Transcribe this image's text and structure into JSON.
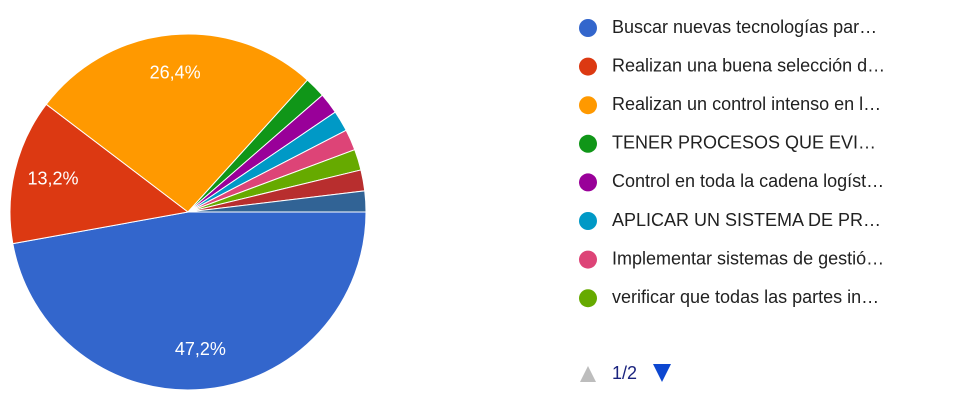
{
  "chart_data": {
    "type": "pie",
    "categories": [
      "Buscar nuevas tecnologías par…",
      "Realizan una buena selección d…",
      "Realizan un control intenso en l…",
      "TENER PROCESOS QUE EVI…",
      "Control en toda la cadena logíst…",
      "APLICAR UN SISTEMA DE PR…",
      "Implementar sistemas de gestió…",
      "verificar que todas las partes in…",
      null,
      null
    ],
    "values": [
      47.2,
      13.2,
      26.4,
      1.9,
      1.9,
      1.9,
      1.9,
      1.9,
      1.9,
      1.9
    ],
    "value_labels": [
      "47,2%",
      "13,2%",
      "26,4%",
      null,
      null,
      null,
      null,
      null,
      null,
      null
    ],
    "colors": [
      "#3366cc",
      "#dc3912",
      "#ff9900",
      "#109618",
      "#990099",
      "#0099c6",
      "#dd4477",
      "#66aa00",
      "#b82e2e",
      "#316395"
    ],
    "pagination": "1/2"
  }
}
